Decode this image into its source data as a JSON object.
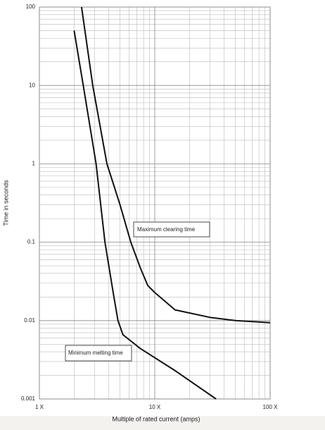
{
  "chart_data": {
    "type": "line",
    "xlabel": "Multiple of rated current (amps)",
    "ylabel": "Time in seconds",
    "xscale": "log",
    "yscale": "log",
    "grid": true,
    "xlim": [
      1,
      100
    ],
    "xticks": [
      {
        "value": 1,
        "label": "1 X"
      },
      {
        "value": 10,
        "label": "10 X"
      },
      {
        "value": 100,
        "label": "100 X"
      }
    ],
    "ylim": [
      0.001,
      100
    ],
    "yticks": [
      0.001,
      0.01,
      0.1,
      1,
      10,
      100
    ],
    "series": [
      {
        "name": "Maximum clearing time",
        "color": "#111111",
        "x": [
          2.32,
          2.9,
          3.85,
          5,
          6.2,
          7.5,
          8.7,
          10,
          15,
          30,
          50,
          100
        ],
        "values": [
          100,
          10,
          1,
          0.3,
          0.1,
          0.047,
          0.028,
          0.0228,
          0.0137,
          0.011,
          0.01,
          0.0094
        ]
      },
      {
        "name": "Minimum melting time",
        "color": "#111111",
        "x": [
          2,
          2.4,
          3.1,
          3.7,
          4.4,
          4.8,
          5.3,
          7.5,
          15,
          34
        ],
        "values": [
          50,
          10,
          1,
          0.1,
          0.021,
          0.01,
          0.0066,
          0.0044,
          0.0023,
          0.001
        ]
      }
    ]
  }
}
